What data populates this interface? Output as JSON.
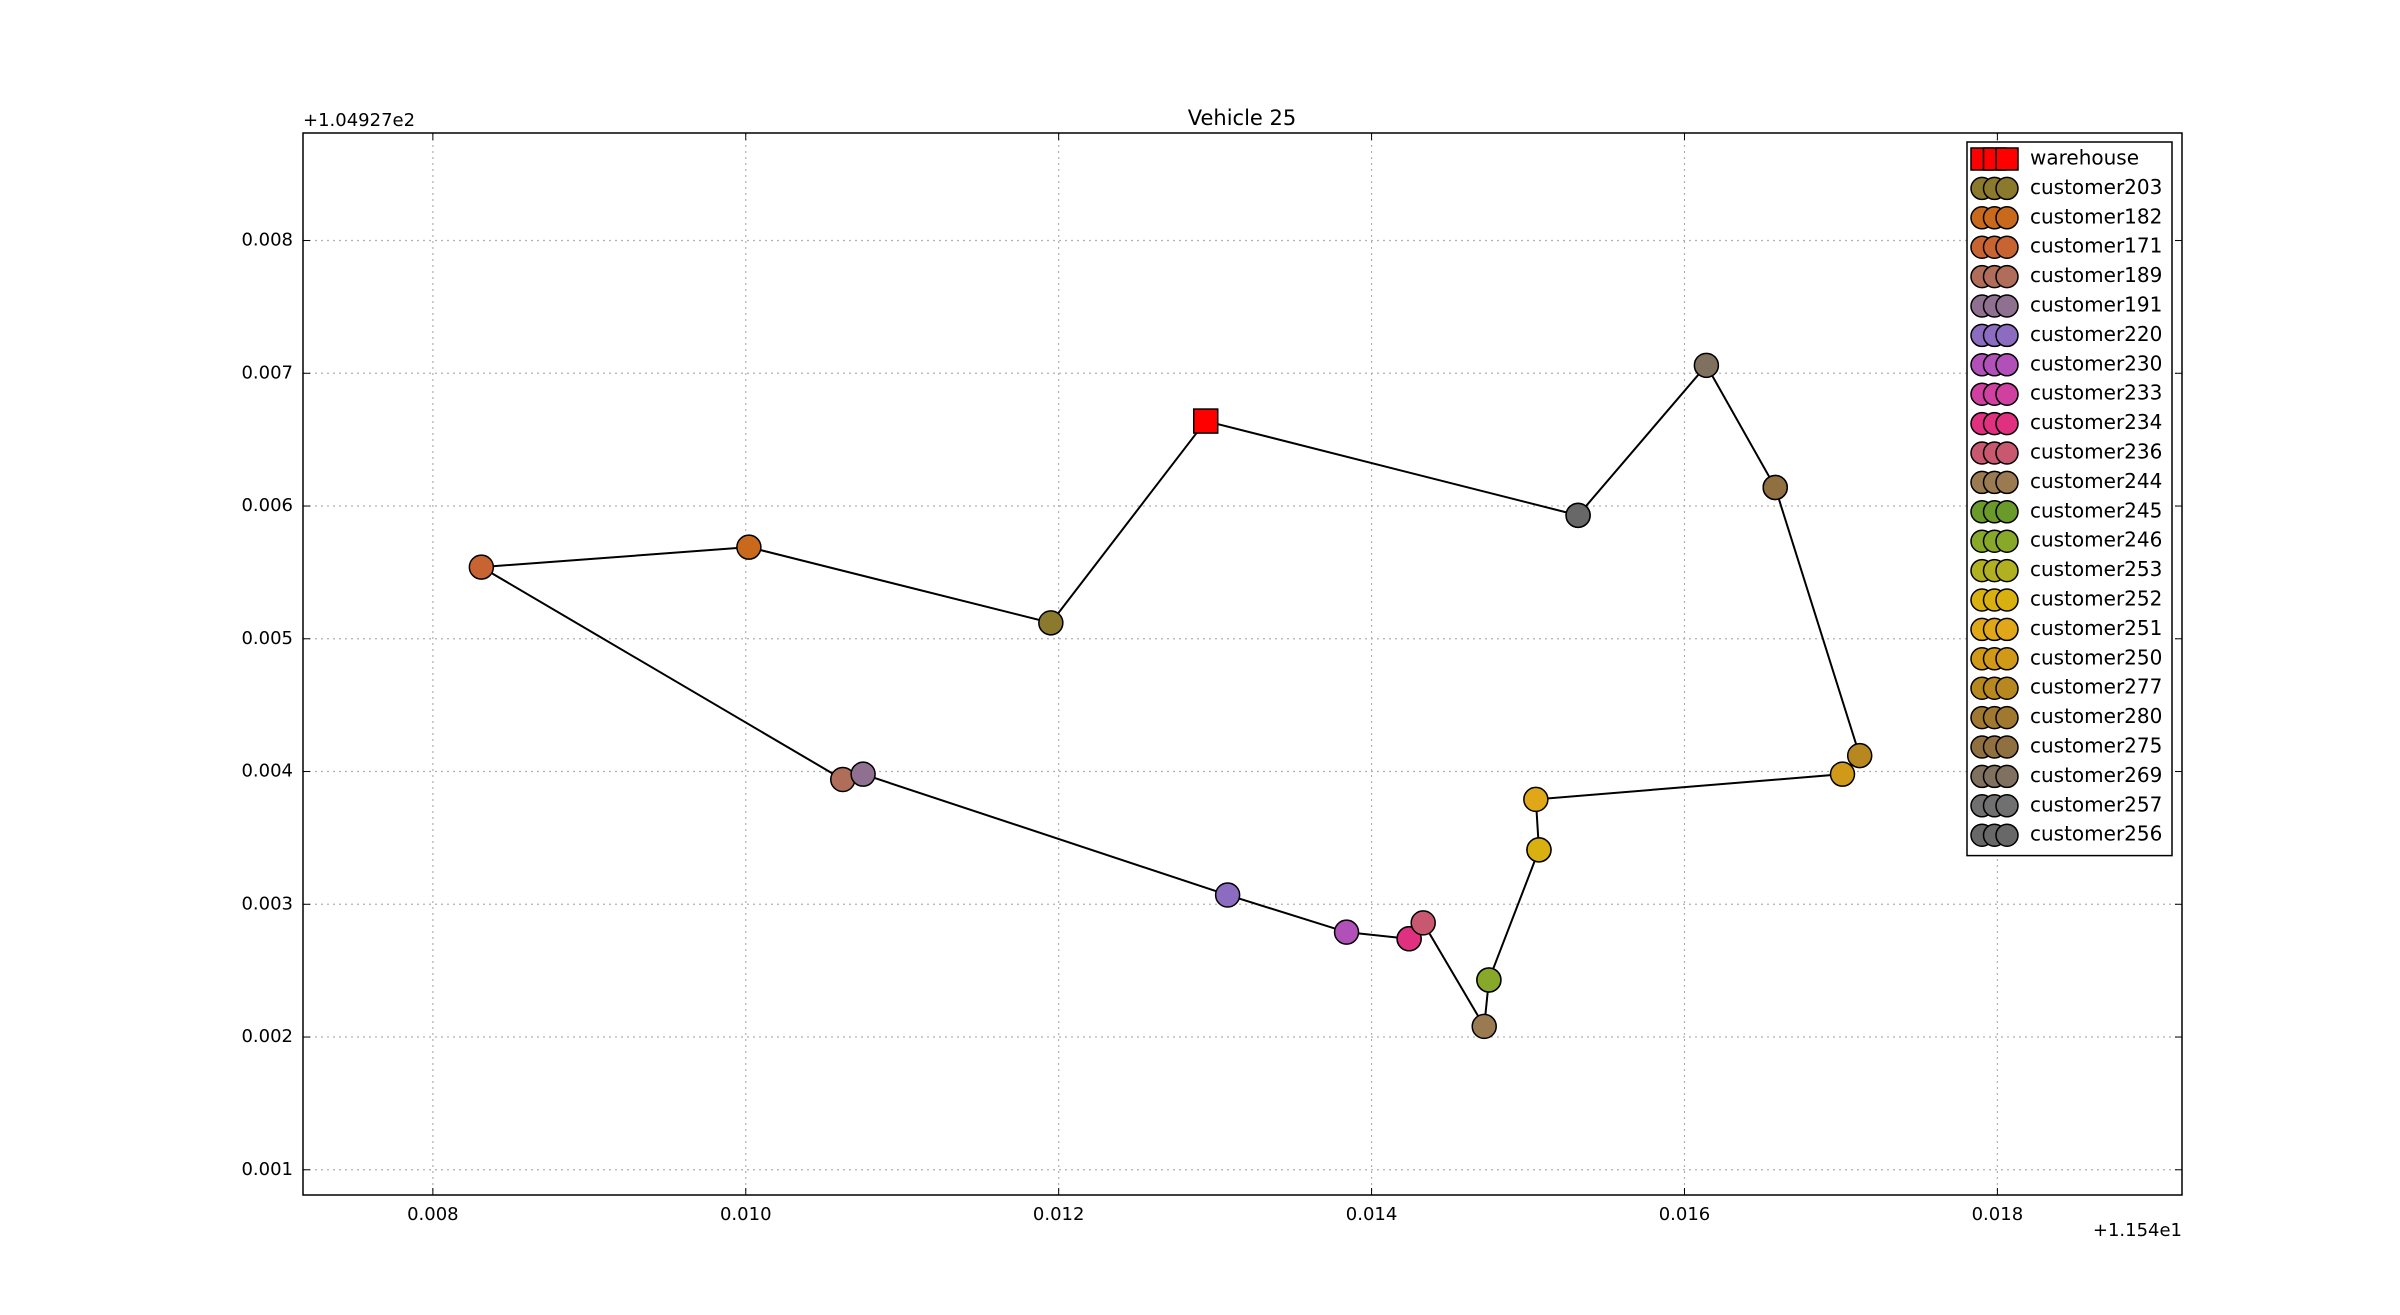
{
  "chart_data": {
    "type": "scatter",
    "title": "Vehicle 25",
    "x_offset_label": "+1.154e1",
    "y_offset_label": "+1.04927e2",
    "xlim": [
      0.00717,
      0.01918
    ],
    "ylim": [
      0.00081,
      0.00881
    ],
    "xticks": [
      0.008,
      {
        "value": 0.01,
        "label": "0.010"
      },
      0.012,
      0.014,
      0.016,
      0.018
    ],
    "yticks": [
      0.001,
      0.002,
      0.003,
      0.004,
      0.005,
      0.006,
      0.007,
      0.008
    ],
    "grid": true,
    "legend": "upper right",
    "route_color": "#000000",
    "series": [
      {
        "name": "warehouse",
        "color": "#ff0000",
        "marker": "square",
        "x": [
          0.01294
        ],
        "values": [
          0.00664
        ]
      },
      {
        "name": "customer203",
        "color": "#8b7a2e",
        "marker": "circle",
        "x": [
          0.01195
        ],
        "values": [
          0.00512
        ]
      },
      {
        "name": "customer182",
        "color": "#c8691c",
        "marker": "circle",
        "x": [
          0.01002
        ],
        "values": [
          0.00569
        ]
      },
      {
        "name": "customer171",
        "color": "#c86432",
        "marker": "circle",
        "x": [
          0.00831
        ],
        "values": [
          0.00554
        ]
      },
      {
        "name": "customer189",
        "color": "#b06e5a",
        "marker": "circle",
        "x": [
          0.01062
        ],
        "values": [
          0.00394
        ]
      },
      {
        "name": "customer191",
        "color": "#907090",
        "marker": "circle",
        "x": [
          0.01075
        ],
        "values": [
          0.00398
        ]
      },
      {
        "name": "customer220",
        "color": "#8c6cc0",
        "marker": "circle",
        "x": [
          0.01308
        ],
        "values": [
          0.00307
        ]
      },
      {
        "name": "customer230",
        "color": "#b050b8",
        "marker": "circle",
        "x": [
          0.01384
        ],
        "values": [
          0.00279
        ]
      },
      {
        "name": "customer233",
        "color": "#d040a0",
        "marker": "circle",
        "x": [
          0.01424
        ],
        "values": [
          0.00274
        ]
      },
      {
        "name": "customer234",
        "color": "#e03080",
        "marker": "circle",
        "x": [
          0.01424
        ],
        "values": [
          0.00274
        ]
      },
      {
        "name": "customer236",
        "color": "#c85870",
        "marker": "circle",
        "x": [
          0.01433
        ],
        "values": [
          0.00286
        ]
      },
      {
        "name": "customer244",
        "color": "#9a7a50",
        "marker": "circle",
        "x": [
          0.01472
        ],
        "values": [
          0.00208
        ]
      },
      {
        "name": "customer245",
        "color": "#6a9a2a",
        "marker": "circle",
        "x": [
          0.01475
        ],
        "values": [
          0.00243
        ]
      },
      {
        "name": "customer246",
        "color": "#88a82a",
        "marker": "circle",
        "x": [
          0.01475
        ],
        "values": [
          0.00243
        ]
      },
      {
        "name": "customer253",
        "color": "#b0b020",
        "marker": "circle",
        "x": [
          0.01507
        ],
        "values": [
          0.00341
        ]
      },
      {
        "name": "customer252",
        "color": "#d8b010",
        "marker": "circle",
        "x": [
          0.01507
        ],
        "values": [
          0.00341
        ]
      },
      {
        "name": "customer251",
        "color": "#e0a818",
        "marker": "circle",
        "x": [
          0.01505
        ],
        "values": [
          0.00379
        ]
      },
      {
        "name": "customer250",
        "color": "#d09a18",
        "marker": "circle",
        "x": [
          0.01701
        ],
        "values": [
          0.00398
        ]
      },
      {
        "name": "customer277",
        "color": "#b88820",
        "marker": "circle",
        "x": [
          0.01712
        ],
        "values": [
          0.00412
        ]
      },
      {
        "name": "customer280",
        "color": "#a07830",
        "marker": "circle",
        "x": [
          0.01658
        ],
        "values": [
          0.00614
        ]
      },
      {
        "name": "customer275",
        "color": "#907040",
        "marker": "circle",
        "x": [
          0.01658
        ],
        "values": [
          0.00614
        ]
      },
      {
        "name": "customer269",
        "color": "#807060",
        "marker": "circle",
        "x": [
          0.01614
        ],
        "values": [
          0.00706
        ]
      },
      {
        "name": "customer257",
        "color": "#707070",
        "marker": "circle",
        "x": [
          0.01532
        ],
        "values": [
          0.00593
        ]
      },
      {
        "name": "customer256",
        "color": "#686868",
        "marker": "circle",
        "x": [
          0.01532
        ],
        "values": [
          0.00593
        ]
      }
    ]
  }
}
